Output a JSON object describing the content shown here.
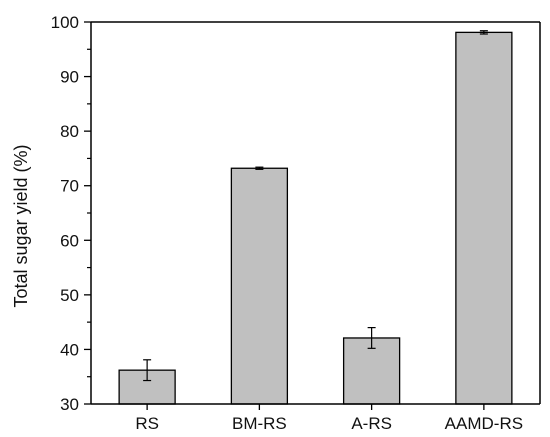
{
  "chart_data": {
    "type": "bar",
    "categories": [
      "RS",
      "BM-RS",
      "A-RS",
      "AAMD-RS"
    ],
    "values": [
      36.2,
      73.2,
      42.1,
      98.1
    ],
    "errors": [
      1.9,
      0.2,
      1.9,
      0.3
    ],
    "title": "",
    "xlabel": "",
    "ylabel": "Total sugar yield (%)",
    "ylim": [
      30,
      100
    ],
    "y_ticks": [
      30,
      40,
      50,
      60,
      70,
      80,
      90,
      100
    ],
    "y_minor_step": 5,
    "grid": false,
    "legend": "none",
    "colors": {
      "bar_fill": "#c0c0c0",
      "bar_stroke": "#000000",
      "axis": "#000000"
    }
  }
}
